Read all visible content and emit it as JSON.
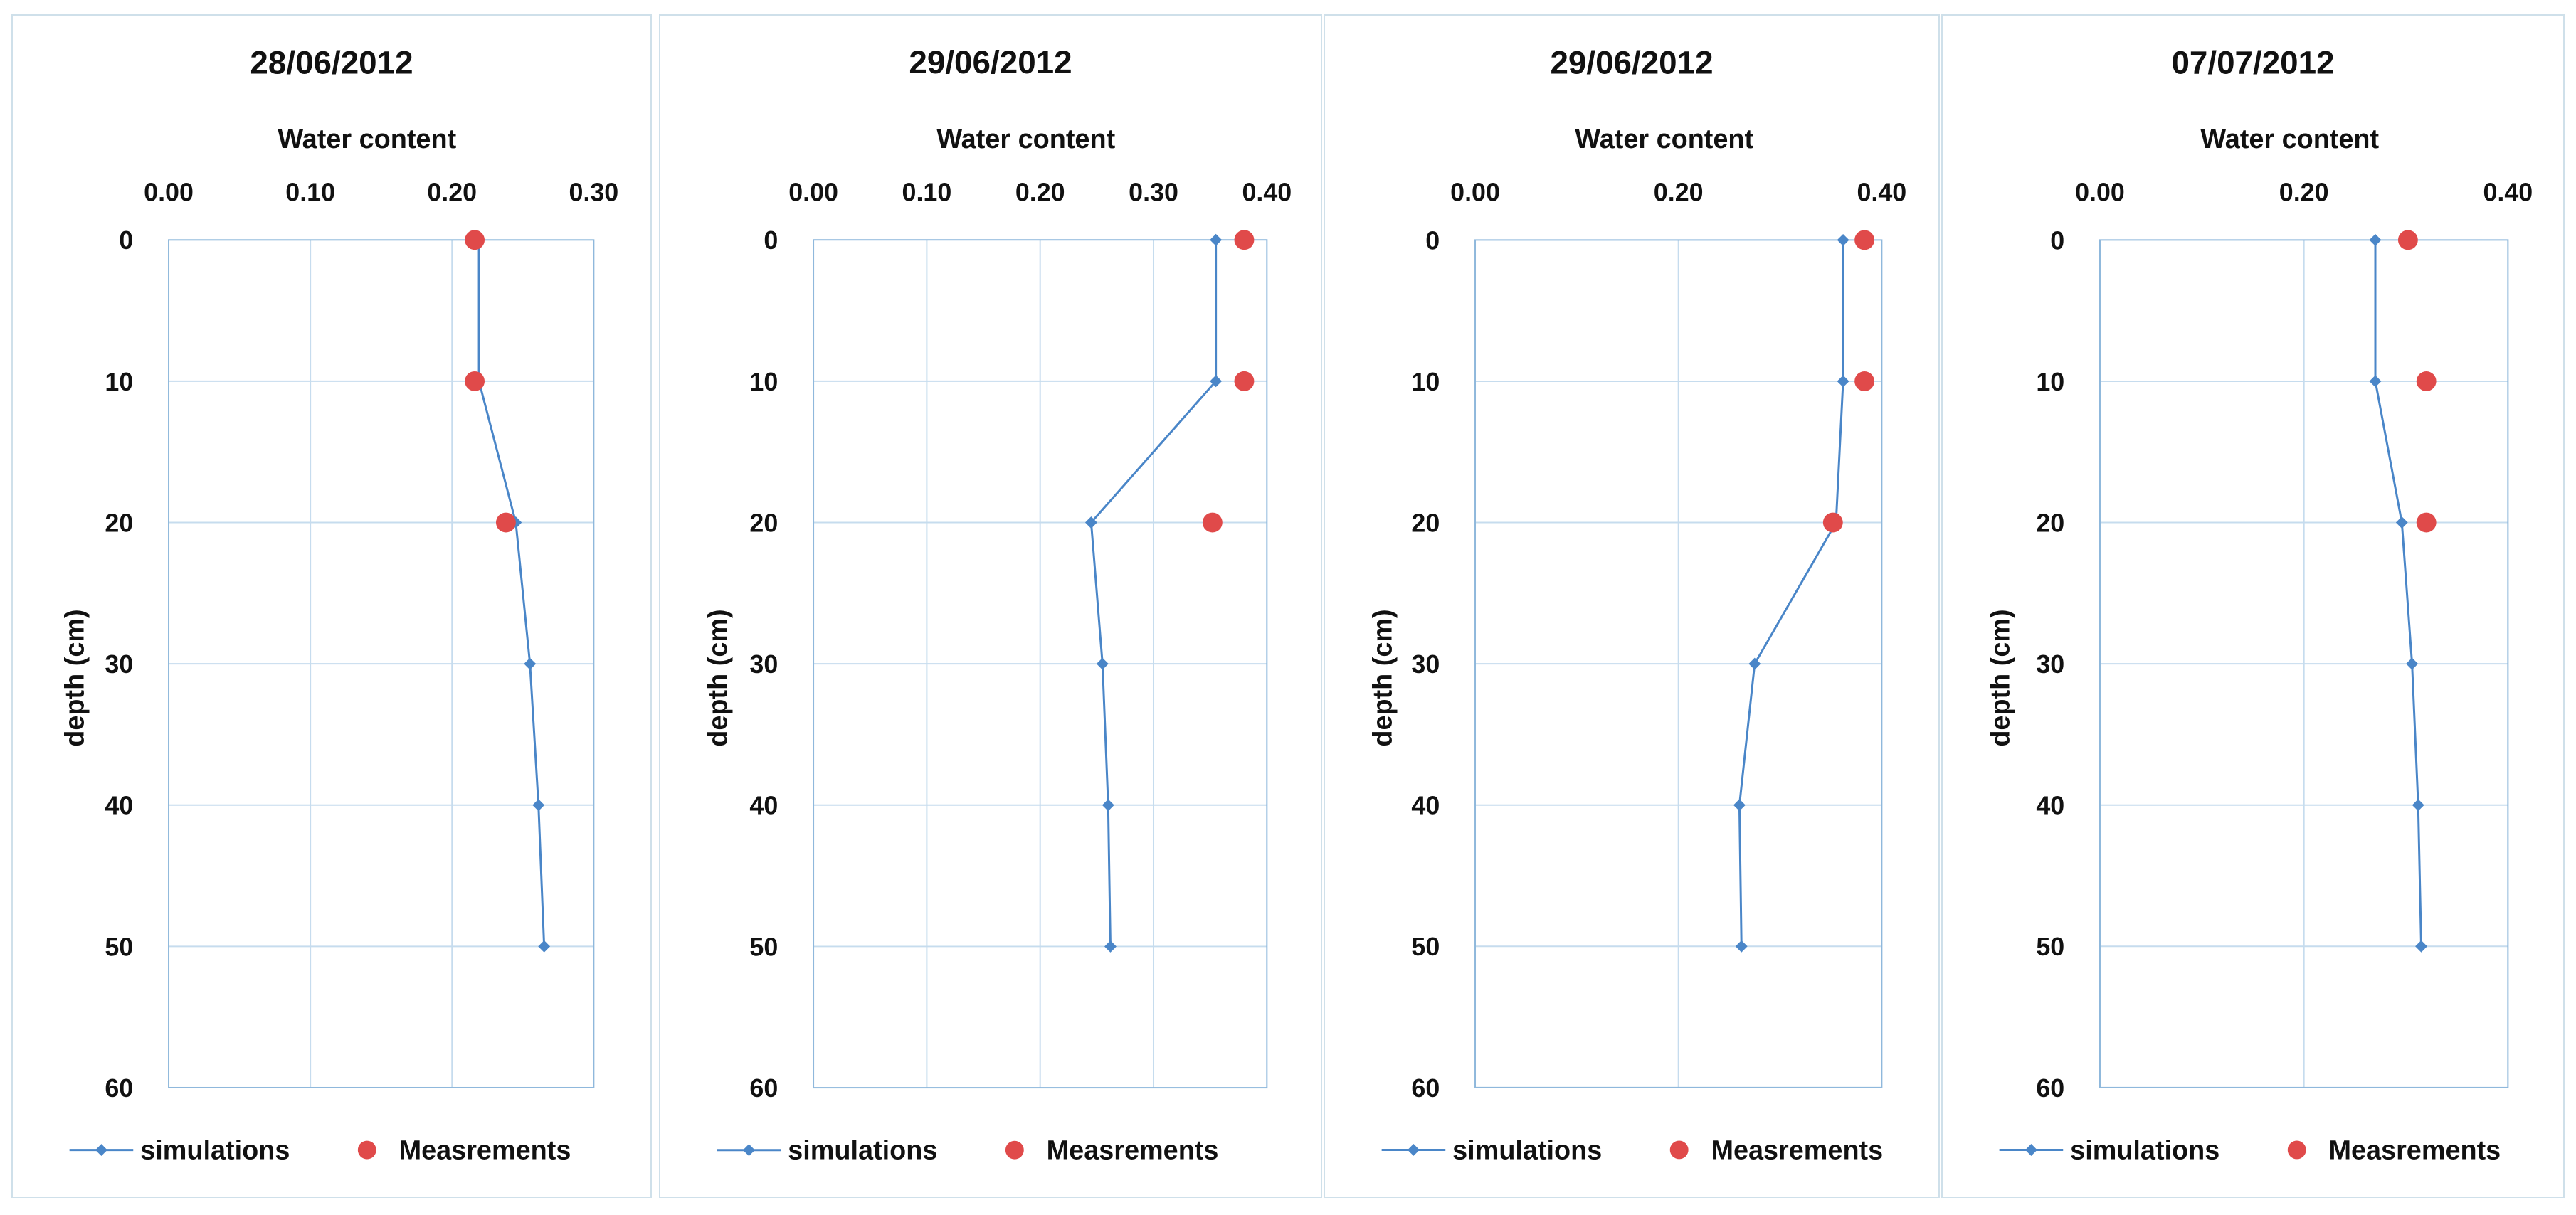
{
  "chart_data": [
    {
      "type": "line",
      "title": "28/06/2012",
      "xlabel": "Water content",
      "ylabel": "depth (cm)",
      "xlim": [
        0,
        0.3
      ],
      "xticks": [
        "0.00",
        "0.10",
        "0.20",
        "0.30"
      ],
      "ylim": [
        0,
        60
      ],
      "yticks": [
        "0",
        "10",
        "20",
        "30",
        "40",
        "50",
        "60"
      ],
      "y_axis_inverted": true,
      "x_axis_position": "top",
      "grid": true,
      "legend_position": "bottom",
      "series": [
        {
          "name": "simulations",
          "style": "line-marker",
          "color": "#4a86c8",
          "x": [
            0.219,
            0.219,
            0.245,
            0.255,
            0.261,
            0.265
          ],
          "y": [
            0,
            10,
            20,
            30,
            40,
            50
          ]
        },
        {
          "name": "Measrements",
          "style": "marker",
          "color": "#e04a4a",
          "x": [
            0.216,
            0.216,
            0.238
          ],
          "y": [
            0,
            10,
            20
          ]
        }
      ]
    },
    {
      "type": "line",
      "title": "29/06/2012",
      "xlabel": "Water content",
      "ylabel": "depth (cm)",
      "xlim": [
        0,
        0.4
      ],
      "xticks": [
        "0.00",
        "0.10",
        "0.20",
        "0.30",
        "0.40"
      ],
      "ylim": [
        0,
        60
      ],
      "yticks": [
        "0",
        "10",
        "20",
        "30",
        "40",
        "50",
        "60"
      ],
      "y_axis_inverted": true,
      "x_axis_position": "top",
      "grid": true,
      "legend_position": "bottom",
      "series": [
        {
          "name": "simulations",
          "style": "line-marker",
          "color": "#4a86c8",
          "x": [
            0.355,
            0.355,
            0.245,
            0.255,
            0.26,
            0.262
          ],
          "y": [
            0,
            10,
            20,
            30,
            40,
            50
          ]
        },
        {
          "name": "Measrements",
          "style": "marker",
          "color": "#e04a4a",
          "x": [
            0.38,
            0.38,
            0.352
          ],
          "y": [
            0,
            10,
            20
          ]
        }
      ]
    },
    {
      "type": "line",
      "title": "29/06/2012",
      "xlabel": "Water content",
      "ylabel": "depth (cm)",
      "xlim": [
        0,
        0.4
      ],
      "xticks": [
        "0.00",
        "0.20",
        "0.40"
      ],
      "ylim": [
        0,
        60
      ],
      "yticks": [
        "0",
        "10",
        "20",
        "30",
        "40",
        "50",
        "60"
      ],
      "y_axis_inverted": true,
      "x_axis_position": "top",
      "grid": true,
      "legend_position": "bottom",
      "series": [
        {
          "name": "simulations",
          "style": "line-marker",
          "color": "#4a86c8",
          "x": [
            0.362,
            0.362,
            0.355,
            0.275,
            0.26,
            0.262
          ],
          "y": [
            0,
            10,
            20,
            30,
            40,
            50
          ]
        },
        {
          "name": "Measrements",
          "style": "marker",
          "color": "#e04a4a",
          "x": [
            0.383,
            0.383,
            0.352
          ],
          "y": [
            0,
            10,
            20
          ]
        }
      ]
    },
    {
      "type": "line",
      "title": "07/07/2012",
      "xlabel": "Water content",
      "ylabel": "depth (cm)",
      "xlim": [
        0,
        0.4
      ],
      "xticks": [
        "0.00",
        "0.20",
        "0.40"
      ],
      "ylim": [
        0,
        60
      ],
      "yticks": [
        "0",
        "10",
        "20",
        "30",
        "40",
        "50",
        "60"
      ],
      "y_axis_inverted": true,
      "x_axis_position": "top",
      "grid": true,
      "legend_position": "bottom",
      "series": [
        {
          "name": "simulations",
          "style": "line-marker",
          "color": "#4a86c8",
          "x": [
            0.27,
            0.27,
            0.296,
            0.306,
            0.312,
            0.315
          ],
          "y": [
            0,
            10,
            20,
            30,
            40,
            50
          ]
        },
        {
          "name": "Measrements",
          "style": "marker",
          "color": "#e04a4a",
          "x": [
            0.302,
            0.32,
            0.32
          ],
          "y": [
            0,
            10,
            20
          ]
        }
      ]
    }
  ]
}
